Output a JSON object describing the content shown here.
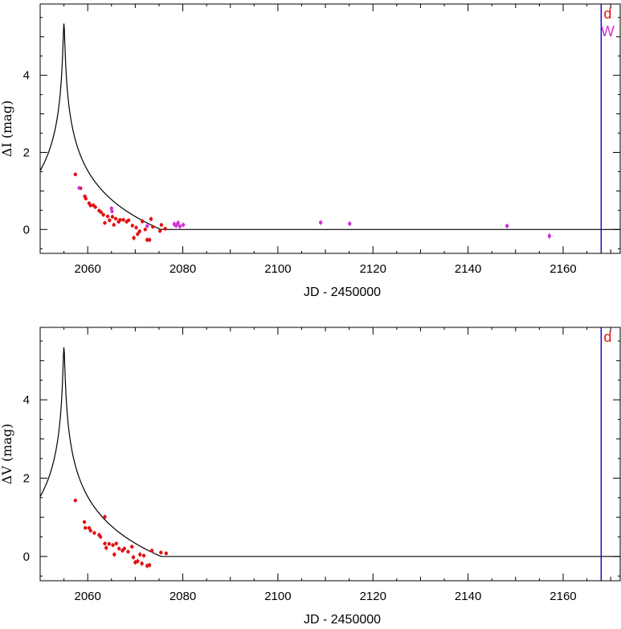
{
  "colors": {
    "dataset_d": "#e01010",
    "dataset_W": "#d030d8",
    "vertical_line": "#0000cc",
    "model": "#000000"
  },
  "chart_data": [
    {
      "type": "scatter",
      "xlabel": "JD - 2450000",
      "ylabel": "ΔI (mag)",
      "xlim": [
        2050,
        2172
      ],
      "ylim": [
        -0.62,
        5.85
      ],
      "xticks": [
        2060,
        2080,
        2100,
        2120,
        2140,
        2160
      ],
      "yticks": [
        0,
        2,
        4
      ],
      "vertical_line_x": 2168,
      "marker_labels": [
        {
          "text": "d",
          "color_key": "dataset_d"
        },
        {
          "text": "W",
          "color_key": "dataset_W"
        }
      ],
      "model": {
        "t0": 2055,
        "peak": 5.35,
        "tau": 1.85,
        "u0": 0.08,
        "x_start": 2050,
        "x_end": 2172
      },
      "series": [
        {
          "color_key": "dataset_d",
          "points": [
            [
              2057.4,
              1.43,
              0.05
            ],
            [
              2058.5,
              1.07,
              0.04
            ],
            [
              2059.4,
              0.86,
              0.05
            ],
            [
              2059.6,
              0.8,
              0.04
            ],
            [
              2060.3,
              0.68,
              0.05
            ],
            [
              2060.6,
              0.62,
              0.04
            ],
            [
              2061.2,
              0.63,
              0.05
            ],
            [
              2061.6,
              0.58,
              0.04
            ],
            [
              2062.4,
              0.49,
              0.05
            ],
            [
              2062.8,
              0.45,
              0.04
            ],
            [
              2063.3,
              0.38,
              0.05
            ],
            [
              2063.6,
              0.17,
              0.05
            ],
            [
              2064.2,
              0.34,
              0.04
            ],
            [
              2064.6,
              0.24,
              0.05
            ],
            [
              2065.2,
              0.33,
              0.05
            ],
            [
              2065.5,
              0.12,
              0.05
            ],
            [
              2065.9,
              0.28,
              0.04
            ],
            [
              2066.5,
              0.2,
              0.05
            ],
            [
              2066.8,
              0.25,
              0.04
            ],
            [
              2067.5,
              0.25,
              0.05
            ],
            [
              2068.2,
              0.2,
              0.05
            ],
            [
              2068.6,
              0.24,
              0.04
            ],
            [
              2069.4,
              0.1,
              0.05
            ],
            [
              2069.7,
              -0.22,
              0.06
            ],
            [
              2070.2,
              0.05,
              0.05
            ],
            [
              2070.5,
              -0.12,
              0.05
            ],
            [
              2070.9,
              -0.05,
              0.06
            ],
            [
              2071.5,
              0.21,
              0.06
            ],
            [
              2072.1,
              0.0,
              0.05
            ],
            [
              2072.5,
              -0.27,
              0.06
            ],
            [
              2073.0,
              -0.27,
              0.06
            ],
            [
              2073.3,
              0.27,
              0.06
            ],
            [
              2073.7,
              0.07,
              0.05
            ],
            [
              2075.2,
              -0.04,
              0.05
            ],
            [
              2075.5,
              0.12,
              0.05
            ],
            [
              2076.3,
              0.02,
              0.05
            ]
          ]
        },
        {
          "color_key": "dataset_W",
          "points": [
            [
              2058.2,
              1.08,
              0.05
            ],
            [
              2065.0,
              0.55,
              0.05
            ],
            [
              2065.1,
              0.47,
              0.05
            ],
            [
              2072.5,
              0.09,
              0.05
            ],
            [
              2078.2,
              0.14,
              0.07
            ],
            [
              2078.6,
              0.1,
              0.06
            ],
            [
              2079.0,
              0.17,
              0.07
            ],
            [
              2079.4,
              0.08,
              0.06
            ],
            [
              2080.1,
              0.12,
              0.06
            ],
            [
              2109.0,
              0.18,
              0.06
            ],
            [
              2115.1,
              0.15,
              0.06
            ],
            [
              2148.2,
              0.09,
              0.06
            ],
            [
              2157.1,
              -0.17,
              0.08
            ]
          ]
        }
      ]
    },
    {
      "type": "scatter",
      "xlabel": "JD - 2450000",
      "ylabel": "ΔV (mag)",
      "xlim": [
        2050,
        2172
      ],
      "ylim": [
        -0.62,
        5.85
      ],
      "xticks": [
        2060,
        2080,
        2100,
        2120,
        2140,
        2160
      ],
      "yticks": [
        0,
        2,
        4
      ],
      "vertical_line_x": 2168,
      "marker_labels": [
        {
          "text": "d",
          "color_key": "dataset_d"
        }
      ],
      "model": {
        "t0": 2055,
        "peak": 5.35,
        "tau": 1.85,
        "u0": 0.08,
        "x_start": 2050,
        "x_end": 2172
      },
      "series": [
        {
          "color_key": "dataset_d",
          "points": [
            [
              2057.4,
              1.43,
              0.04
            ],
            [
              2059.3,
              0.88,
              0.05
            ],
            [
              2059.5,
              0.73,
              0.05
            ],
            [
              2060.3,
              0.73,
              0.05
            ],
            [
              2060.6,
              0.66,
              0.05
            ],
            [
              2061.4,
              0.6,
              0.05
            ],
            [
              2062.4,
              0.55,
              0.05
            ],
            [
              2062.7,
              0.5,
              0.05
            ],
            [
              2063.6,
              1.01,
              0.06
            ],
            [
              2063.6,
              0.33,
              0.05
            ],
            [
              2063.9,
              0.22,
              0.06
            ],
            [
              2064.5,
              0.32,
              0.05
            ],
            [
              2065.3,
              0.29,
              0.05
            ],
            [
              2065.6,
              0.05,
              0.06
            ],
            [
              2066.0,
              0.33,
              0.05
            ],
            [
              2066.6,
              0.2,
              0.05
            ],
            [
              2067.3,
              0.15,
              0.05
            ],
            [
              2067.7,
              0.2,
              0.05
            ],
            [
              2068.5,
              0.12,
              0.05
            ],
            [
              2069.3,
              0.25,
              0.05
            ],
            [
              2069.6,
              -0.02,
              0.06
            ],
            [
              2070.0,
              -0.15,
              0.06
            ],
            [
              2070.5,
              -0.12,
              0.06
            ],
            [
              2071.0,
              0.05,
              0.06
            ],
            [
              2071.4,
              -0.18,
              0.06
            ],
            [
              2071.8,
              0.02,
              0.05
            ],
            [
              2072.5,
              -0.24,
              0.06
            ],
            [
              2073.0,
              -0.22,
              0.06
            ],
            [
              2073.5,
              0.15,
              0.05
            ],
            [
              2075.4,
              0.1,
              0.05
            ],
            [
              2076.5,
              0.08,
              0.05
            ]
          ]
        }
      ]
    }
  ]
}
